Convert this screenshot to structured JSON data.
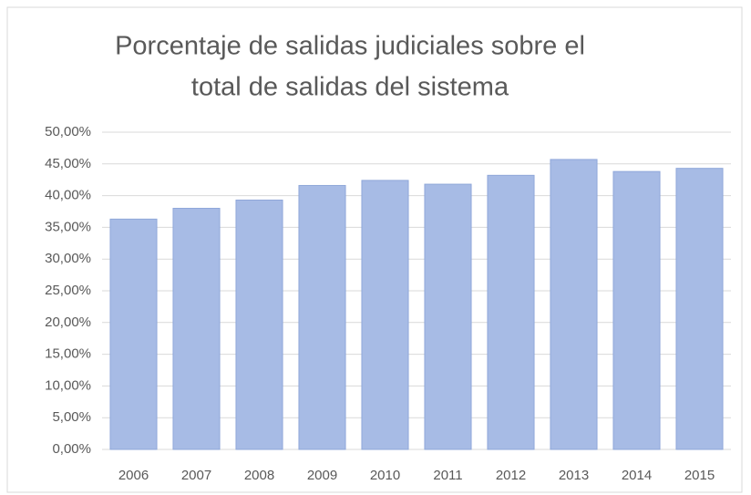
{
  "chart_data": {
    "type": "bar",
    "title": [
      "Porcentaje de salidas judiciales sobre el",
      "total de salidas del sistema"
    ],
    "categories": [
      "2006",
      "2007",
      "2008",
      "2009",
      "2010",
      "2011",
      "2012",
      "2013",
      "2014",
      "2015"
    ],
    "values": [
      36.3,
      38.0,
      39.3,
      41.6,
      42.4,
      41.8,
      43.2,
      45.7,
      43.8,
      44.3
    ],
    "color": "#a7bbe5",
    "ylim": [
      0,
      50
    ],
    "yticks": [
      {
        "value": 0,
        "label": "0,00%"
      },
      {
        "value": 5,
        "label": "5,00%"
      },
      {
        "value": 10,
        "label": "10,00%"
      },
      {
        "value": 15,
        "label": "15,00%"
      },
      {
        "value": 20,
        "label": "20,00%"
      },
      {
        "value": 25,
        "label": "25,00%"
      },
      {
        "value": 30,
        "label": "30,00%"
      },
      {
        "value": 35,
        "label": "35,00%"
      },
      {
        "value": 40,
        "label": "40,00%"
      },
      {
        "value": 45,
        "label": "45,00%"
      },
      {
        "value": 50,
        "label": "50,00%"
      }
    ],
    "grid": true
  }
}
